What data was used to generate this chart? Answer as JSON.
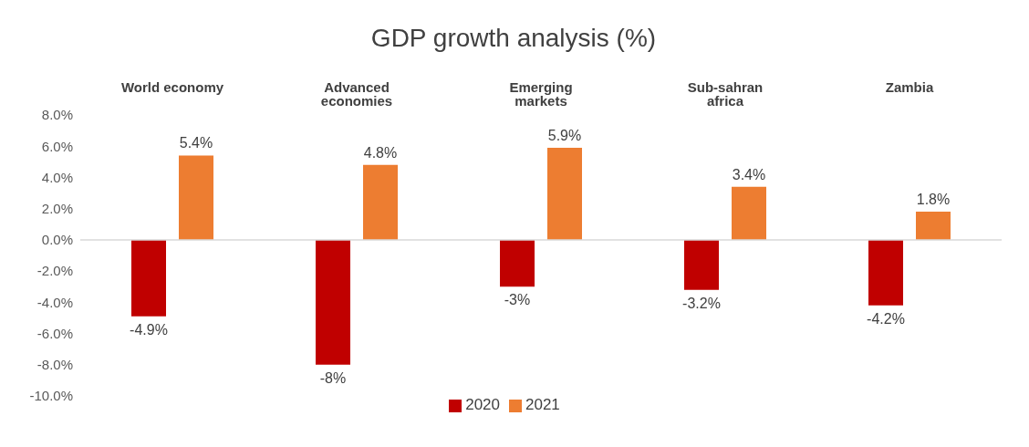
{
  "chart_data": {
    "type": "bar",
    "title": "GDP growth analysis (%)",
    "categories": [
      "World economy",
      "Advanced economies",
      "Emerging markets",
      "Sub-sahran africa",
      "Zambia"
    ],
    "series": [
      {
        "name": "2020",
        "color": "#c00000",
        "values": [
          -4.9,
          -8,
          -3,
          -3.2,
          -4.2
        ],
        "value_labels": [
          "-4.9%",
          "-8%",
          "-3%",
          "-3.2%",
          "-4.2%"
        ]
      },
      {
        "name": "2021",
        "color": "#ed7d31",
        "values": [
          5.4,
          4.8,
          5.9,
          3.4,
          1.8
        ],
        "value_labels": [
          "5.4%",
          "4.8%",
          "5.9%",
          "3.4%",
          "1.8%"
        ]
      }
    ],
    "ylim": [
      -10,
      8
    ],
    "yticks": [
      {
        "value": -10,
        "label": "-10.0%"
      },
      {
        "value": -8,
        "label": "-8.0%"
      },
      {
        "value": -6,
        "label": "-6.0%"
      },
      {
        "value": -4,
        "label": "-4.0%"
      },
      {
        "value": -2,
        "label": "-2.0%"
      },
      {
        "value": 0,
        "label": "0.0%"
      },
      {
        "value": 2,
        "label": "2.0%"
      },
      {
        "value": 4,
        "label": "4.0%"
      },
      {
        "value": 6,
        "label": "6.0%"
      },
      {
        "value": 8,
        "label": "8.0%"
      }
    ],
    "legend": "bottom"
  }
}
